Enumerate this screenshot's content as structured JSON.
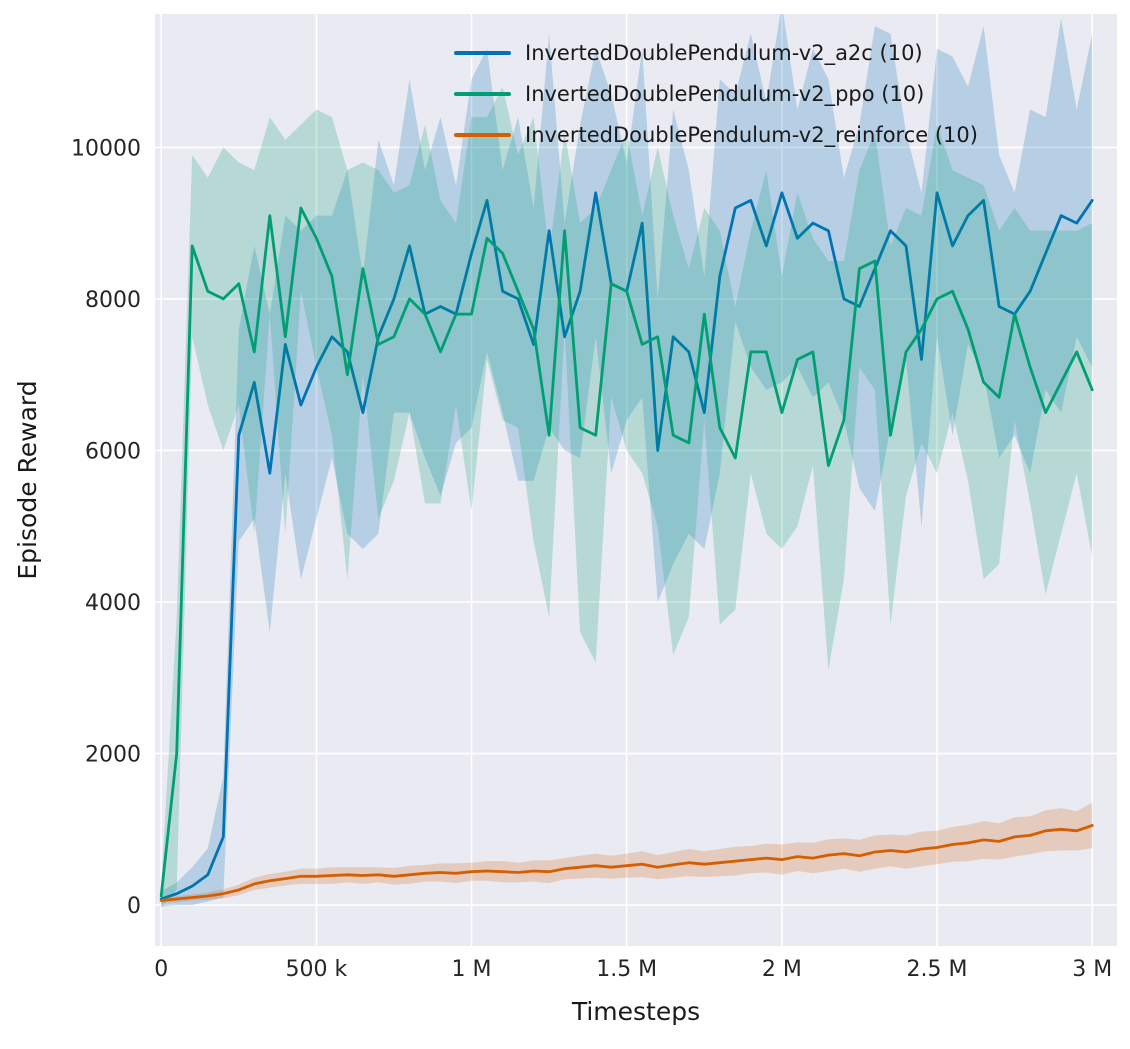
{
  "figure": {
    "background": "#ffffff"
  },
  "chart_data": {
    "type": "line",
    "title": "",
    "xlabel": "Timesteps",
    "ylabel": "Episode Reward",
    "grid": true,
    "legend_position": "upper-left-inside",
    "style": {
      "plot_bg": "#eaeaf2",
      "grid_color": "#ffffff",
      "tick_color": "#262626",
      "label_color": "#1a1a1a",
      "band_opacity": 0.22,
      "line_width": 2.8
    },
    "axes": {
      "xlim": [
        -20000,
        3080000
      ],
      "ylim": [
        -540,
        11760
      ],
      "x_ticks": [
        {
          "value": 0,
          "label": "0"
        },
        {
          "value": 500000,
          "label": "500 k"
        },
        {
          "value": 1000000,
          "label": "1 M"
        },
        {
          "value": 1500000,
          "label": "1.5 M"
        },
        {
          "value": 2000000,
          "label": "2 M"
        },
        {
          "value": 2500000,
          "label": "2.5 M"
        },
        {
          "value": 3000000,
          "label": "3 M"
        }
      ],
      "y_ticks": [
        {
          "value": 0,
          "label": "0"
        },
        {
          "value": 2000,
          "label": "2000"
        },
        {
          "value": 4000,
          "label": "4000"
        },
        {
          "value": 6000,
          "label": "6000"
        },
        {
          "value": 8000,
          "label": "8000"
        },
        {
          "value": 10000,
          "label": "10000"
        }
      ]
    },
    "x": [
      0,
      50000,
      100000,
      150000,
      200000,
      250000,
      300000,
      350000,
      400000,
      450000,
      500000,
      550000,
      600000,
      650000,
      700000,
      750000,
      800000,
      850000,
      900000,
      950000,
      1000000,
      1050000,
      1100000,
      1150000,
      1200000,
      1250000,
      1300000,
      1350000,
      1400000,
      1450000,
      1500000,
      1550000,
      1600000,
      1650000,
      1700000,
      1750000,
      1800000,
      1850000,
      1900000,
      1950000,
      2000000,
      2050000,
      2100000,
      2150000,
      2200000,
      2250000,
      2300000,
      2350000,
      2400000,
      2450000,
      2500000,
      2550000,
      2600000,
      2650000,
      2700000,
      2750000,
      2800000,
      2850000,
      2900000,
      2950000,
      3000000
    ],
    "series": [
      {
        "id": "a2c",
        "name": "InvertedDoublePendulum-v2_a2c (10)",
        "color": "#0173b2",
        "values": [
          80,
          150,
          250,
          400,
          900,
          6200,
          6900,
          5700,
          7400,
          6600,
          7100,
          7500,
          7300,
          6500,
          7500,
          8000,
          8700,
          7800,
          7900,
          7800,
          8600,
          9300,
          8100,
          8000,
          7400,
          8900,
          7500,
          8100,
          9400,
          8200,
          8100,
          9000,
          6000,
          7500,
          7300,
          6500,
          8300,
          9200,
          9300,
          8700,
          9400,
          8800,
          9000,
          8900,
          8000,
          7900,
          8400,
          8900,
          8700,
          7200,
          9400,
          8700,
          9100,
          9300,
          7900,
          7800,
          8100,
          8600,
          9100,
          9000,
          9300
        ],
        "band": [
          100,
          150,
          250,
          350,
          800,
          1400,
          1800,
          2100,
          1700,
          2300,
          2000,
          1600,
          2400,
          1800,
          2600,
          1500,
          2200,
          1900,
          2500,
          1700,
          2300,
          2000,
          1600,
          2400,
          1800,
          2600,
          1500,
          2200,
          1900,
          2500,
          1700,
          2300,
          2000,
          3000,
          2400,
          1800,
          2600,
          1500,
          2200,
          1900,
          2500,
          1700,
          2300,
          2000,
          1600,
          2400,
          3200,
          2600,
          1500,
          2200,
          1900,
          2500,
          1700,
          2300,
          2000,
          1600,
          2400,
          1800,
          2600,
          1500,
          2200
        ]
      },
      {
        "id": "ppo",
        "name": "InvertedDoublePendulum-v2_ppo (10)",
        "color": "#029e73",
        "values": [
          120,
          2000,
          8700,
          8100,
          8000,
          8200,
          7300,
          9100,
          7500,
          9200,
          8800,
          8300,
          7000,
          8400,
          7400,
          7500,
          8000,
          7800,
          7300,
          7800,
          7800,
          8800,
          8600,
          8100,
          7600,
          6200,
          8900,
          6300,
          6200,
          8200,
          8100,
          7400,
          7500,
          6200,
          6100,
          7800,
          6300,
          5900,
          7300,
          7300,
          6500,
          7200,
          7300,
          5800,
          6400,
          8400,
          8500,
          6200,
          7300,
          7600,
          8000,
          8100,
          7600,
          6900,
          6700,
          7800,
          7100,
          6500,
          6900,
          7300,
          6800
        ],
        "band": [
          150,
          1800,
          1200,
          1500,
          2000,
          1600,
          2400,
          1300,
          2600,
          1100,
          1700,
          2100,
          2700,
          1400,
          2300,
          1900,
          1500,
          2500,
          2000,
          1200,
          2600,
          1600,
          2200,
          1800,
          2800,
          2400,
          1300,
          2700,
          3000,
          1500,
          2100,
          1700,
          2500,
          2900,
          2300,
          1400,
          2600,
          2000,
          1600,
          2400,
          1800,
          2200,
          1500,
          2700,
          2100,
          1300,
          1700,
          2500,
          1900,
          1500,
          2300,
          1600,
          2000,
          2600,
          2200,
          1400,
          1800,
          2400,
          2000,
          1600,
          2200
        ]
      },
      {
        "id": "reinforce",
        "name": "InvertedDoublePendulum-v2_reinforce (10)",
        "color": "#d55e00",
        "values": [
          60,
          80,
          100,
          120,
          150,
          200,
          280,
          320,
          350,
          380,
          380,
          390,
          400,
          390,
          400,
          380,
          400,
          420,
          430,
          420,
          440,
          450,
          440,
          430,
          450,
          440,
          480,
          500,
          520,
          500,
          520,
          540,
          500,
          530,
          560,
          540,
          560,
          580,
          600,
          620,
          600,
          640,
          620,
          660,
          680,
          650,
          700,
          720,
          700,
          740,
          760,
          800,
          820,
          860,
          840,
          900,
          920,
          980,
          1000,
          980,
          1050
        ],
        "band": [
          30,
          40,
          40,
          50,
          60,
          70,
          80,
          90,
          90,
          100,
          100,
          110,
          100,
          110,
          100,
          110,
          120,
          110,
          120,
          130,
          120,
          130,
          140,
          130,
          140,
          150,
          140,
          150,
          160,
          150,
          160,
          170,
          160,
          170,
          180,
          170,
          180,
          190,
          180,
          190,
          200,
          190,
          200,
          210,
          200,
          210,
          220,
          210,
          220,
          230,
          220,
          230,
          240,
          250,
          240,
          260,
          250,
          270,
          280,
          260,
          300
        ]
      }
    ]
  }
}
